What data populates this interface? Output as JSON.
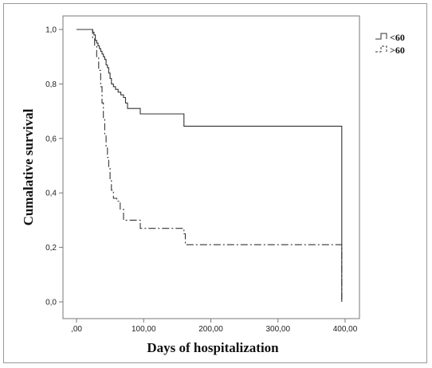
{
  "chart_data": {
    "type": "line",
    "xlabel": "Days of hospitalization",
    "ylabel": "Cumalative survival",
    "xlim": [
      0,
      400
    ],
    "ylim": [
      0,
      1
    ],
    "x_ticks": [
      0,
      100,
      200,
      300,
      400
    ],
    "x_tick_labels": [
      ",00",
      "100,00",
      "200,00",
      "300,00",
      "400,00"
    ],
    "y_ticks": [
      0,
      0.2,
      0.4,
      0.6,
      0.8,
      1.0
    ],
    "y_tick_labels": [
      "0,0",
      "0,2",
      "0,4",
      "0,6",
      "0,8",
      "1,0"
    ],
    "grid": false,
    "legend_position": "top-right",
    "series": [
      {
        "name": "<60",
        "style": "solid",
        "color": "#333333",
        "points": [
          [
            0,
            1.0
          ],
          [
            22,
            1.0
          ],
          [
            24,
            0.99
          ],
          [
            26,
            0.98
          ],
          [
            28,
            0.96
          ],
          [
            30,
            0.95
          ],
          [
            32,
            0.94
          ],
          [
            34,
            0.93
          ],
          [
            36,
            0.92
          ],
          [
            38,
            0.91
          ],
          [
            40,
            0.9
          ],
          [
            42,
            0.89
          ],
          [
            44,
            0.87
          ],
          [
            46,
            0.86
          ],
          [
            48,
            0.84
          ],
          [
            50,
            0.82
          ],
          [
            52,
            0.8
          ],
          [
            55,
            0.79
          ],
          [
            58,
            0.78
          ],
          [
            62,
            0.77
          ],
          [
            66,
            0.76
          ],
          [
            70,
            0.75
          ],
          [
            73,
            0.73
          ],
          [
            76,
            0.71
          ],
          [
            95,
            0.69
          ],
          [
            160,
            0.645
          ],
          [
            393,
            0.645
          ],
          [
            395,
            0.0
          ]
        ]
      },
      {
        "name": ">60",
        "style": "dashdot",
        "color": "#333333",
        "points": [
          [
            0,
            1.0
          ],
          [
            20,
            1.0
          ],
          [
            24,
            0.97
          ],
          [
            27,
            0.94
          ],
          [
            30,
            0.9
          ],
          [
            33,
            0.85
          ],
          [
            36,
            0.79
          ],
          [
            38,
            0.73
          ],
          [
            40,
            0.67
          ],
          [
            42,
            0.61
          ],
          [
            44,
            0.57
          ],
          [
            46,
            0.53
          ],
          [
            48,
            0.49
          ],
          [
            50,
            0.45
          ],
          [
            52,
            0.41
          ],
          [
            55,
            0.38
          ],
          [
            60,
            0.37
          ],
          [
            65,
            0.34
          ],
          [
            70,
            0.3
          ],
          [
            95,
            0.27
          ],
          [
            160,
            0.25
          ],
          [
            162,
            0.21
          ],
          [
            393,
            0.21
          ],
          [
            395,
            0.0
          ]
        ]
      }
    ]
  }
}
